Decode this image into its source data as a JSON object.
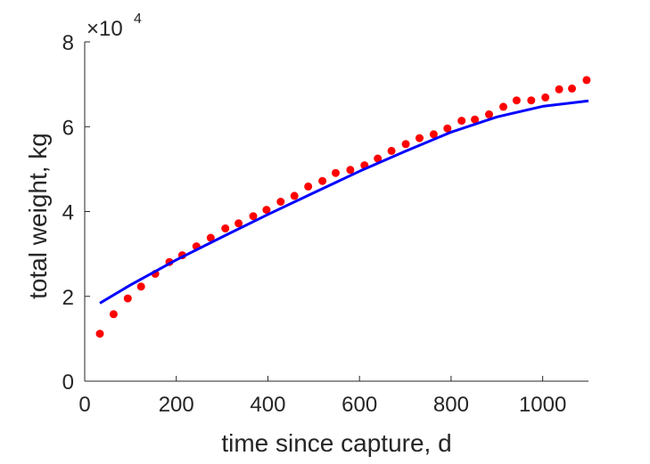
{
  "chart_data": {
    "type": "line",
    "title": "",
    "xlabel": "time since capture, d",
    "ylabel": "total weight, kg",
    "xlim": [
      0,
      1100
    ],
    "ylim": [
      0,
      80000
    ],
    "xticks": [
      0,
      200,
      400,
      600,
      800,
      1000
    ],
    "xtick_labels": [
      "0",
      "200",
      "400",
      "600",
      "800",
      "1000"
    ],
    "yticks": [
      0,
      20000,
      40000,
      60000,
      80000
    ],
    "ytick_labels": [
      "0",
      "2",
      "4",
      "6",
      "8"
    ],
    "y_exponent": {
      "base": "×10",
      "power": "4"
    },
    "grid": false,
    "legend": "none",
    "series": [
      {
        "kind": "scatter",
        "color": "#ff0000",
        "marker": "dot",
        "points": [
          [
            33,
            11200
          ],
          [
            63,
            15800
          ],
          [
            94,
            19500
          ],
          [
            123,
            22300
          ],
          [
            154,
            25300
          ],
          [
            185,
            28100
          ],
          [
            213,
            29700
          ],
          [
            244,
            31800
          ],
          [
            275,
            33800
          ],
          [
            307,
            36000
          ],
          [
            336,
            37200
          ],
          [
            368,
            38900
          ],
          [
            397,
            40400
          ],
          [
            428,
            42300
          ],
          [
            458,
            43700
          ],
          [
            488,
            45900
          ],
          [
            519,
            47200
          ],
          [
            548,
            49100
          ],
          [
            580,
            49800
          ],
          [
            611,
            50900
          ],
          [
            640,
            52500
          ],
          [
            670,
            54300
          ],
          [
            701,
            55900
          ],
          [
            731,
            57300
          ],
          [
            762,
            58200
          ],
          [
            792,
            59600
          ],
          [
            823,
            61400
          ],
          [
            852,
            61700
          ],
          [
            883,
            62900
          ],
          [
            914,
            64700
          ],
          [
            943,
            66200
          ],
          [
            975,
            66200
          ],
          [
            1006,
            66900
          ],
          [
            1036,
            68800
          ],
          [
            1064,
            69000
          ],
          [
            1096,
            71000
          ]
        ]
      },
      {
        "kind": "line",
        "color": "#0000ff",
        "points": [
          [
            33,
            18400
          ],
          [
            100,
            22700
          ],
          [
            200,
            28600
          ],
          [
            300,
            34000
          ],
          [
            400,
            39300
          ],
          [
            500,
            44400
          ],
          [
            600,
            49500
          ],
          [
            700,
            54200
          ],
          [
            800,
            58700
          ],
          [
            900,
            62300
          ],
          [
            1000,
            64800
          ],
          [
            1100,
            66100
          ]
        ]
      }
    ]
  }
}
